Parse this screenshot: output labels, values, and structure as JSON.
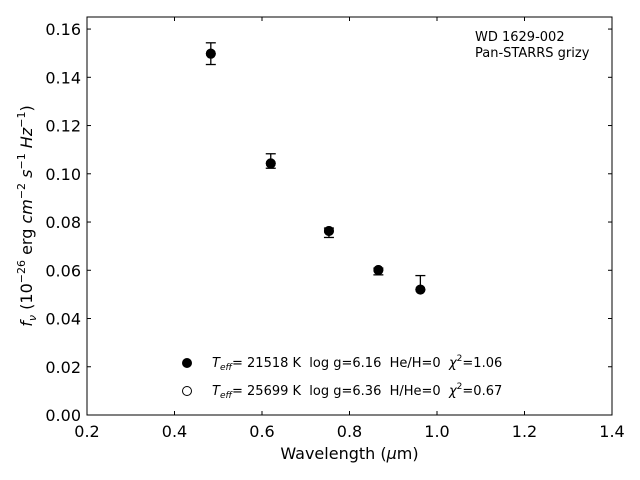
{
  "chart_data": {
    "type": "scatter",
    "title": "",
    "xlabel": "Wavelength (μm)",
    "xlabel_parts": {
      "pre": "Wavelength (",
      "greek": "μ",
      "post": "m)"
    },
    "ylabel": "f_ν (10^-26 erg cm^-2 s^-1 Hz^-1)",
    "xlim": [
      0.2,
      1.4
    ],
    "ylim": [
      0.0,
      0.165
    ],
    "xticks": [
      0.2,
      0.4,
      0.6,
      0.8,
      1.0,
      1.2,
      1.4
    ],
    "xtick_labels": [
      "0.2",
      "0.4",
      "0.6",
      "0.8",
      "1.0",
      "1.2",
      "1.4"
    ],
    "yticks": [
      0.0,
      0.02,
      0.04,
      0.06,
      0.08,
      0.1,
      0.12,
      0.14,
      0.16
    ],
    "ytick_labels": [
      "0.00",
      "0.02",
      "0.04",
      "0.06",
      "0.08",
      "0.10",
      "0.12",
      "0.14",
      "0.16"
    ],
    "grid": false,
    "annotation_lines": [
      "WD 1629-002",
      "Pan-STARRS grizy"
    ],
    "annotation_position": "top-right",
    "legend_position": "bottom-center",
    "observed": {
      "x": [
        0.483,
        0.62,
        0.753,
        0.866,
        0.962
      ],
      "y": [
        0.1498,
        0.1043,
        0.0763,
        0.0601,
        0.052
      ],
      "yerr_low": [
        0.0045,
        0.002,
        0.0027,
        0.002,
        0.0
      ],
      "yerr_high": [
        0.0045,
        0.004,
        0.0012,
        0.0008,
        0.0058
      ]
    },
    "series": [
      {
        "name": "T_eff= 21518 K  log g=6.16  He/H=0  χ²=1.06",
        "marker": "filled-circle",
        "x": [
          0.483,
          0.62,
          0.753,
          0.866,
          0.962
        ],
        "y": [
          0.1498,
          0.1043,
          0.0763,
          0.0601,
          0.052
        ]
      },
      {
        "name": "T_eff= 25699 K  log g=6.36  H/He=0  χ²=0.67",
        "marker": "open-circle",
        "x": [
          0.483,
          0.62,
          0.753,
          0.866,
          0.962
        ],
        "y": [
          0.1498,
          0.1043,
          0.0763,
          0.0601,
          0.052
        ]
      }
    ],
    "legend": [
      {
        "teff_label": "T",
        "teff_sub": "eff",
        "text": "= 21518 K  log g=6.16  He/H=0  ",
        "chi": "χ",
        "chi_sup": "2",
        "chi_val": "=1.06"
      },
      {
        "teff_label": "T",
        "teff_sub": "eff",
        "text": "= 25699 K  log g=6.36  H/He=0  ",
        "chi": "χ",
        "chi_sup": "2",
        "chi_val": "=0.67"
      }
    ],
    "colors": {
      "axis": "#000000",
      "marker": "#000000",
      "background": "#ffffff"
    }
  }
}
